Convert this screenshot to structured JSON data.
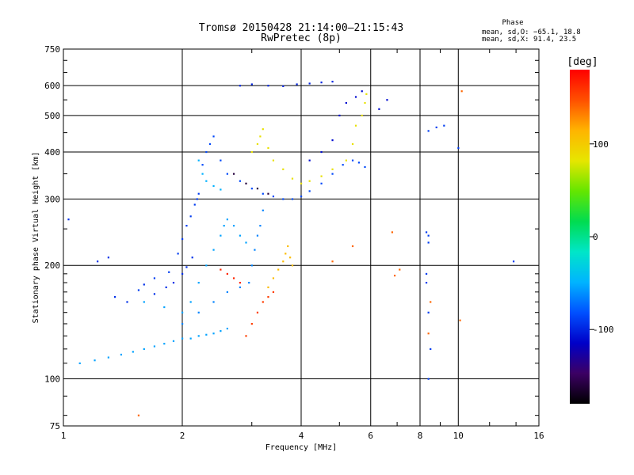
{
  "chart_data": {
    "type": "scatter",
    "title": "Tromsø 20150428 21:14:00–21:15:43",
    "subtitle": "RwPretec (8p)",
    "xlabel": "Frequency [MHz]",
    "ylabel": "Stationary phase Virtual Height [km]",
    "x_scale": "log",
    "y_scale": "log",
    "xlim": [
      1,
      16
    ],
    "ylim": [
      75,
      750
    ],
    "x_ticks": [
      1,
      2,
      4,
      6,
      8,
      10,
      16
    ],
    "y_ticks": [
      75,
      100,
      200,
      300,
      400,
      500,
      600,
      750
    ],
    "grid": true,
    "stats": {
      "title": "Phase",
      "line_o": "mean, sd,O: −65.1, 18.8",
      "line_x": "mean, sd,X:  91.4, 23.5"
    },
    "colorbar": {
      "label": "[deg]",
      "ticks": [
        100,
        0,
        -100
      ],
      "range": [
        -180,
        180
      ],
      "colors": [
        "#000000",
        "#3c0064",
        "#0000c8",
        "#0050ff",
        "#00b4ff",
        "#00e6c8",
        "#00dc50",
        "#64e600",
        "#e6e600",
        "#ffb400",
        "#ff5000",
        "#ff0000"
      ]
    },
    "series": [
      {
        "points": [
          [
            1.03,
            265
          ],
          [
            1.22,
            205
          ],
          [
            1.3,
            210
          ],
          [
            1.35,
            165
          ],
          [
            1.45,
            160
          ],
          [
            1.6,
            178
          ],
          [
            1.7,
            168
          ],
          [
            1.82,
            175
          ],
          [
            1.9,
            180
          ],
          [
            2.0,
            190
          ],
          [
            2.05,
            198
          ],
          [
            2.12,
            210
          ]
        ],
        "phase": -95
      },
      {
        "points": [
          [
            1.55,
            172
          ],
          [
            1.7,
            185
          ],
          [
            1.85,
            192
          ],
          [
            1.95,
            215
          ],
          [
            2.0,
            235
          ],
          [
            2.05,
            255
          ],
          [
            2.1,
            270
          ],
          [
            2.15,
            290
          ],
          [
            2.18,
            300
          ],
          [
            2.2,
            310
          ]
        ],
        "phase": -90
      },
      {
        "points": [
          [
            1.1,
            110
          ],
          [
            1.2,
            112
          ],
          [
            1.3,
            114
          ],
          [
            1.4,
            116
          ],
          [
            1.5,
            118
          ],
          [
            1.6,
            120
          ],
          [
            1.7,
            122
          ],
          [
            1.8,
            124
          ],
          [
            1.9,
            126
          ],
          [
            2.0,
            128
          ],
          [
            2.1,
            128
          ],
          [
            2.2,
            130
          ],
          [
            2.3,
            131
          ],
          [
            2.4,
            132
          ],
          [
            2.5,
            134
          ],
          [
            2.6,
            136
          ]
        ],
        "phase": -55
      },
      {
        "points": [
          [
            1.6,
            160
          ],
          [
            1.8,
            155
          ],
          [
            2.0,
            150
          ],
          [
            2.1,
            160
          ],
          [
            2.2,
            180
          ],
          [
            2.3,
            200
          ],
          [
            2.4,
            220
          ],
          [
            2.5,
            240
          ],
          [
            2.55,
            255
          ],
          [
            2.6,
            265
          ],
          [
            2.7,
            255
          ],
          [
            2.8,
            240
          ],
          [
            2.9,
            230
          ]
        ],
        "phase": -55
      },
      {
        "points": [
          [
            2.0,
            140
          ],
          [
            2.2,
            150
          ],
          [
            2.4,
            160
          ],
          [
            2.6,
            170
          ],
          [
            2.8,
            175
          ],
          [
            2.95,
            180
          ],
          [
            3.0,
            200
          ],
          [
            3.05,
            220
          ],
          [
            3.1,
            240
          ],
          [
            3.15,
            255
          ],
          [
            3.2,
            280
          ]
        ],
        "phase": -65
      },
      {
        "points": [
          [
            2.25,
            370
          ],
          [
            2.3,
            400
          ],
          [
            2.35,
            420
          ],
          [
            2.4,
            440
          ],
          [
            2.5,
            380
          ],
          [
            2.6,
            350
          ],
          [
            2.8,
            335
          ],
          [
            3.0,
            320
          ],
          [
            3.2,
            310
          ],
          [
            3.4,
            305
          ],
          [
            3.6,
            300
          ],
          [
            3.8,
            300
          ],
          [
            4.0,
            305
          ],
          [
            4.2,
            315
          ],
          [
            4.5,
            330
          ],
          [
            4.8,
            350
          ],
          [
            5.1,
            370
          ],
          [
            5.4,
            380
          ],
          [
            5.6,
            375
          ],
          [
            5.8,
            365
          ]
        ],
        "phase": -85
      },
      {
        "points": [
          [
            2.2,
            380
          ],
          [
            2.25,
            350
          ],
          [
            2.3,
            335
          ],
          [
            2.4,
            325
          ],
          [
            2.5,
            318
          ]
        ],
        "phase": -50
      },
      {
        "points": [
          [
            2.7,
            350
          ],
          [
            2.9,
            330
          ],
          [
            3.1,
            320
          ],
          [
            3.3,
            310
          ]
        ],
        "phase": -160
      },
      {
        "points": [
          [
            2.8,
            600
          ],
          [
            3.0,
            605
          ],
          [
            3.3,
            600
          ],
          [
            3.6,
            598
          ],
          [
            3.9,
            605
          ],
          [
            4.2,
            608
          ],
          [
            4.5,
            612
          ],
          [
            4.8,
            615
          ]
        ],
        "phase": -100
      },
      {
        "points": [
          [
            3.0,
            400
          ],
          [
            3.1,
            420
          ],
          [
            3.15,
            440
          ],
          [
            3.2,
            460
          ],
          [
            3.3,
            410
          ],
          [
            3.4,
            380
          ],
          [
            3.6,
            360
          ],
          [
            3.8,
            340
          ],
          [
            4.0,
            330
          ],
          [
            4.2,
            335
          ],
          [
            4.5,
            345
          ],
          [
            4.8,
            360
          ],
          [
            5.2,
            380
          ],
          [
            5.4,
            420
          ],
          [
            5.5,
            470
          ],
          [
            5.7,
            500
          ],
          [
            5.8,
            540
          ],
          [
            5.85,
            570
          ]
        ],
        "phase": 85
      },
      {
        "points": [
          [
            3.3,
            175
          ],
          [
            3.4,
            185
          ],
          [
            3.5,
            195
          ],
          [
            3.6,
            205
          ],
          [
            3.65,
            215
          ],
          [
            3.7,
            225
          ],
          [
            3.75,
            210
          ],
          [
            3.8,
            200
          ]
        ],
        "phase": 110
      },
      {
        "points": [
          [
            2.9,
            130
          ],
          [
            3.0,
            140
          ],
          [
            3.1,
            150
          ],
          [
            3.2,
            160
          ],
          [
            3.3,
            165
          ],
          [
            3.4,
            170
          ]
        ],
        "phase": 155
      },
      {
        "points": [
          [
            2.5,
            195
          ],
          [
            2.6,
            190
          ],
          [
            2.7,
            185
          ],
          [
            2.8,
            180
          ]
        ],
        "phase": 165
      },
      {
        "points": [
          [
            4.2,
            380
          ],
          [
            4.5,
            400
          ],
          [
            4.8,
            430
          ],
          [
            5.0,
            500
          ],
          [
            5.2,
            540
          ],
          [
            5.5,
            560
          ],
          [
            5.7,
            580
          ],
          [
            6.3,
            520
          ],
          [
            6.6,
            550
          ]
        ],
        "phase": -110
      },
      {
        "points": [
          [
            8.3,
            245
          ],
          [
            8.4,
            240
          ],
          [
            8.4,
            230
          ],
          [
            8.3,
            190
          ],
          [
            8.3,
            180
          ],
          [
            8.4,
            150
          ],
          [
            8.5,
            120
          ],
          [
            8.4,
            100
          ],
          [
            10.0,
            410
          ],
          [
            9.2,
            470
          ],
          [
            8.8,
            465
          ],
          [
            8.4,
            455
          ],
          [
            13.8,
            205
          ]
        ],
        "phase": -90
      },
      {
        "points": [
          [
            1.55,
            80
          ],
          [
            8.5,
            160
          ],
          [
            8.4,
            132
          ],
          [
            10.1,
            143
          ],
          [
            10.2,
            580
          ],
          [
            6.8,
            245
          ],
          [
            5.4,
            225
          ],
          [
            4.8,
            205
          ],
          [
            7.1,
            195
          ],
          [
            6.9,
            188
          ]
        ],
        "phase": 140
      }
    ]
  }
}
